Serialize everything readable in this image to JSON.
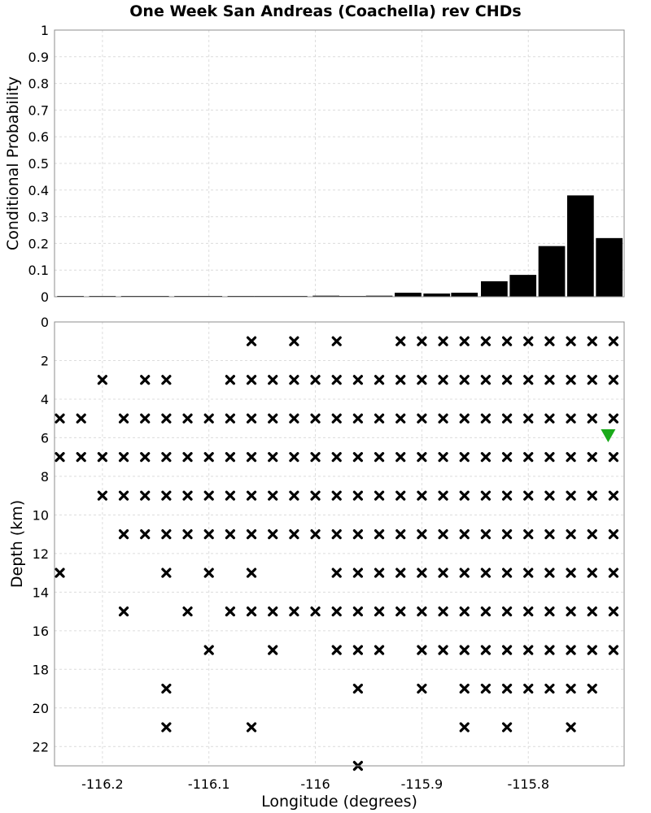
{
  "chart_data": {
    "title": "One Week San Andreas (Coachella) rev CHDs",
    "xlabel": "Longitude (degrees)",
    "xlim": [
      -116.245,
      -115.71
    ],
    "xticks": [
      -116.2,
      -116.1,
      -116,
      -115.9,
      -115.8
    ],
    "xtick_labels": [
      "-116.2",
      "-116.1",
      "-116",
      "-115.9",
      "-115.8"
    ],
    "grid": true,
    "top_panel": {
      "type": "bar",
      "ylabel": "Conditional Probability",
      "ylim": [
        0,
        1
      ],
      "yticks": [
        0,
        0.1,
        0.2,
        0.3,
        0.4,
        0.5,
        0.6,
        0.7,
        0.8,
        0.9,
        1
      ],
      "ytick_labels": [
        "0",
        "0.1",
        "0.2",
        "0.3",
        "0.4",
        "0.5",
        "0.6",
        "0.7",
        "0.8",
        "0.9",
        "1"
      ],
      "bar_width_deg": 0.025,
      "bar_color": "#000000",
      "bars": [
        {
          "x": -116.23,
          "value": 0.0
        },
        {
          "x": -116.2,
          "value": 0.0
        },
        {
          "x": -116.17,
          "value": 0.001
        },
        {
          "x": -116.15,
          "value": 0.001
        },
        {
          "x": -116.12,
          "value": 0.0
        },
        {
          "x": -116.1,
          "value": 0.002
        },
        {
          "x": -116.07,
          "value": 0.002
        },
        {
          "x": -116.045,
          "value": 0.002
        },
        {
          "x": -116.02,
          "value": 0.002
        },
        {
          "x": -115.99,
          "value": 0.004
        },
        {
          "x": -115.965,
          "value": 0.003
        },
        {
          "x": -115.94,
          "value": 0.004
        },
        {
          "x": -115.913,
          "value": 0.015
        },
        {
          "x": -115.886,
          "value": 0.012
        },
        {
          "x": -115.86,
          "value": 0.015
        },
        {
          "x": -115.832,
          "value": 0.058
        },
        {
          "x": -115.805,
          "value": 0.082
        },
        {
          "x": -115.778,
          "value": 0.19
        },
        {
          "x": -115.751,
          "value": 0.38
        },
        {
          "x": -115.724,
          "value": 0.22
        }
      ]
    },
    "bottom_panel": {
      "type": "scatter",
      "ylabel": "Depth (km)",
      "ylim": [
        0,
        23
      ],
      "y_inverted": true,
      "yticks": [
        0,
        2,
        4,
        6,
        8,
        10,
        12,
        14,
        16,
        18,
        20,
        22
      ],
      "ytick_labels": [
        "0",
        "2",
        "4",
        "6",
        "8",
        "10",
        "12",
        "14",
        "16",
        "18",
        "20",
        "22"
      ],
      "marker": "x",
      "marker_color": "#000000",
      "epicenter": {
        "x": -115.725,
        "y": 5.9,
        "marker": "triangle-down",
        "color": "#1aaa1a"
      },
      "rows": [
        {
          "depth": 1,
          "x": [
            -116.06,
            -116.02,
            -115.98,
            -115.92,
            -115.9,
            -115.88,
            -115.86,
            -115.84,
            -115.82,
            -115.8,
            -115.78,
            -115.76,
            -115.74,
            -115.72
          ]
        },
        {
          "depth": 3,
          "x": [
            -116.2,
            -116.16,
            -116.14,
            -116.08,
            -116.06,
            -116.04,
            -116.02,
            -116.0,
            -115.98,
            -115.96,
            -115.94,
            -115.92,
            -115.9,
            -115.88,
            -115.86,
            -115.84,
            -115.82,
            -115.8,
            -115.78,
            -115.76,
            -115.74,
            -115.72
          ]
        },
        {
          "depth": 5,
          "x": [
            -116.24,
            -116.22,
            -116.18,
            -116.16,
            -116.14,
            -116.12,
            -116.1,
            -116.08,
            -116.06,
            -116.04,
            -116.02,
            -116.0,
            -115.98,
            -115.96,
            -115.94,
            -115.92,
            -115.9,
            -115.88,
            -115.86,
            -115.84,
            -115.82,
            -115.8,
            -115.78,
            -115.76,
            -115.74,
            -115.72
          ]
        },
        {
          "depth": 7,
          "x": [
            -116.24,
            -116.22,
            -116.2,
            -116.18,
            -116.16,
            -116.14,
            -116.12,
            -116.1,
            -116.08,
            -116.06,
            -116.04,
            -116.02,
            -116.0,
            -115.98,
            -115.96,
            -115.94,
            -115.92,
            -115.9,
            -115.88,
            -115.86,
            -115.84,
            -115.82,
            -115.8,
            -115.78,
            -115.76,
            -115.74,
            -115.72
          ]
        },
        {
          "depth": 9,
          "x": [
            -116.2,
            -116.18,
            -116.16,
            -116.14,
            -116.12,
            -116.1,
            -116.08,
            -116.06,
            -116.04,
            -116.02,
            -116.0,
            -115.98,
            -115.96,
            -115.94,
            -115.92,
            -115.9,
            -115.88,
            -115.86,
            -115.84,
            -115.82,
            -115.8,
            -115.78,
            -115.76,
            -115.74,
            -115.72
          ]
        },
        {
          "depth": 11,
          "x": [
            -116.18,
            -116.16,
            -116.14,
            -116.12,
            -116.1,
            -116.08,
            -116.06,
            -116.04,
            -116.02,
            -116.0,
            -115.98,
            -115.96,
            -115.94,
            -115.92,
            -115.9,
            -115.88,
            -115.86,
            -115.84,
            -115.82,
            -115.8,
            -115.78,
            -115.76,
            -115.74,
            -115.72
          ]
        },
        {
          "depth": 13,
          "x": [
            -116.24,
            -116.14,
            -116.1,
            -116.06,
            -115.98,
            -115.96,
            -115.94,
            -115.92,
            -115.9,
            -115.88,
            -115.86,
            -115.84,
            -115.82,
            -115.8,
            -115.78,
            -115.76,
            -115.74,
            -115.72
          ]
        },
        {
          "depth": 15,
          "x": [
            -116.18,
            -116.12,
            -116.08,
            -116.06,
            -116.04,
            -116.02,
            -116.0,
            -115.98,
            -115.96,
            -115.94,
            -115.92,
            -115.9,
            -115.88,
            -115.86,
            -115.84,
            -115.82,
            -115.8,
            -115.78,
            -115.76,
            -115.74,
            -115.72
          ]
        },
        {
          "depth": 17,
          "x": [
            -116.1,
            -116.04,
            -115.98,
            -115.96,
            -115.94,
            -115.9,
            -115.88,
            -115.86,
            -115.84,
            -115.82,
            -115.8,
            -115.78,
            -115.76,
            -115.74,
            -115.72
          ]
        },
        {
          "depth": 19,
          "x": [
            -116.14,
            -115.96,
            -115.9,
            -115.86,
            -115.84,
            -115.82,
            -115.8,
            -115.78,
            -115.76,
            -115.74
          ]
        },
        {
          "depth": 21,
          "x": [
            -116.14,
            -116.06,
            -115.86,
            -115.82,
            -115.76
          ]
        },
        {
          "depth": 23,
          "x": [
            -115.96
          ]
        }
      ]
    }
  }
}
